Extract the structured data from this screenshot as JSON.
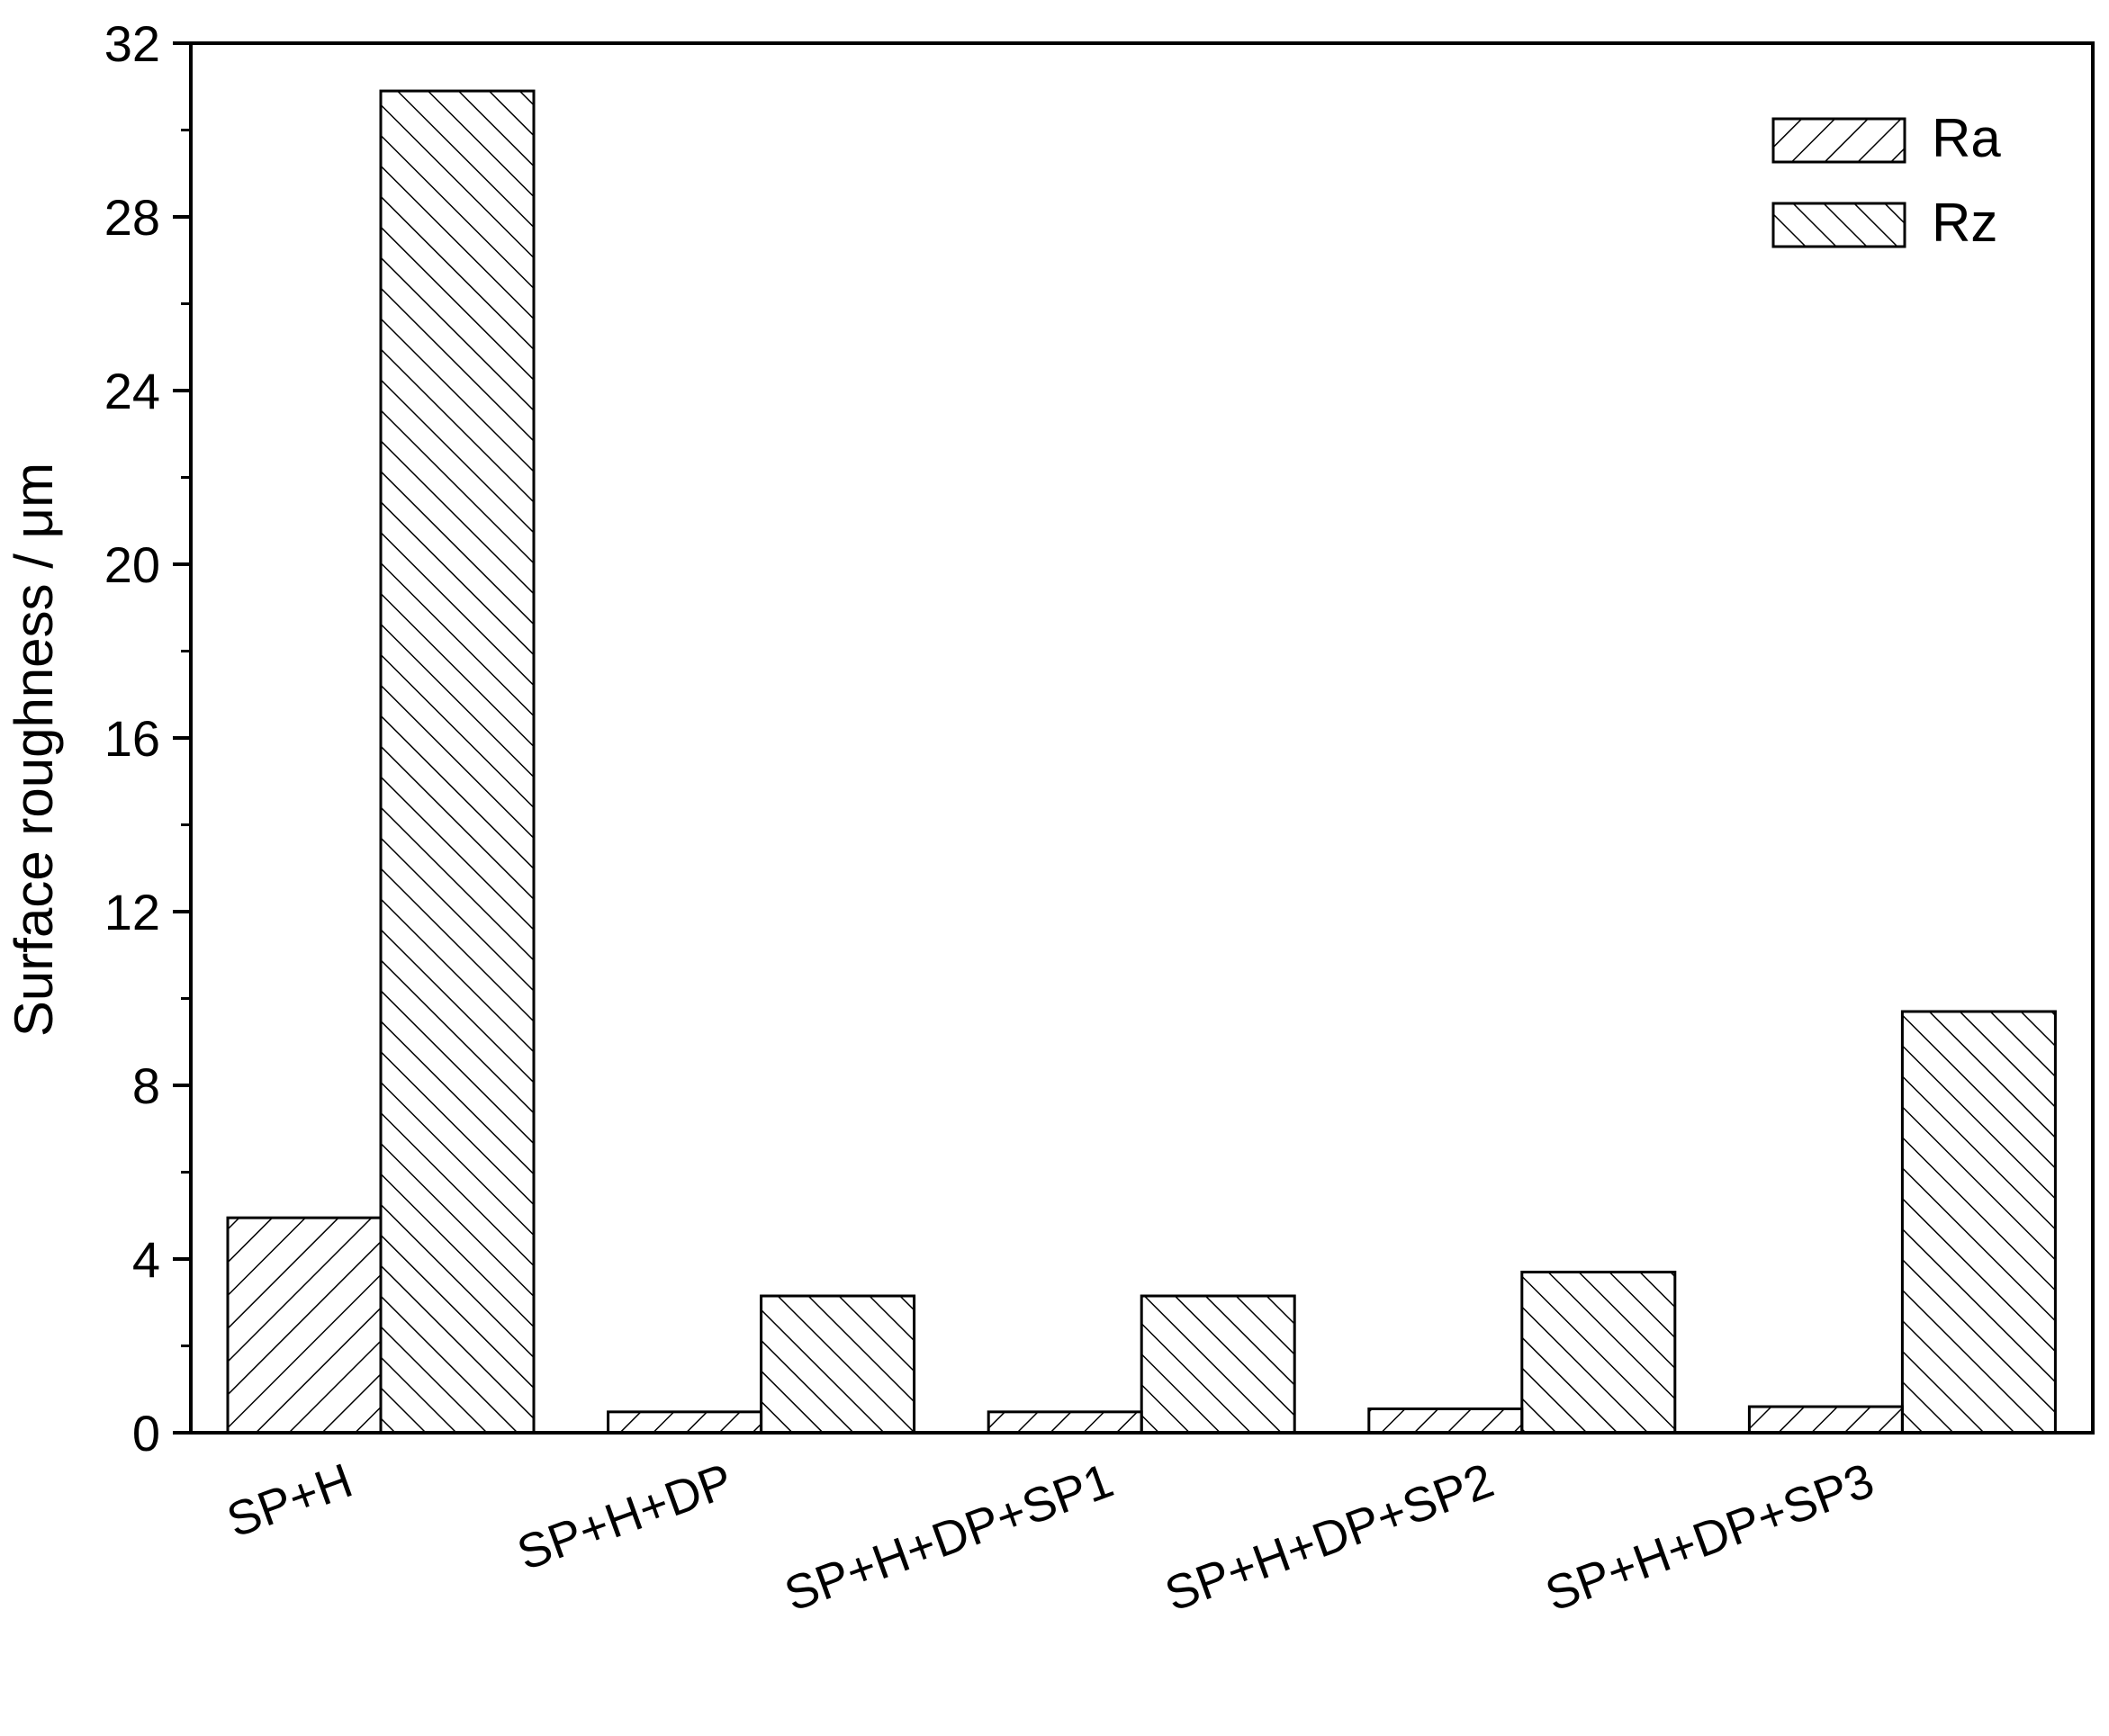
{
  "chart_data": {
    "type": "bar",
    "title": "",
    "xlabel": "",
    "ylabel": "Surface roughness / μm",
    "ylim": [
      0,
      32
    ],
    "yticks": [
      "0",
      "4",
      "8",
      "12",
      "16",
      "20",
      "24",
      "28",
      "32"
    ],
    "y_minor_ticks": true,
    "grid": false,
    "legend_position": "top-right",
    "categories": [
      "SP+H",
      "SP+H+DP",
      "SP+H+DP+SP1",
      "SP+H+DP+SP2",
      "SP+H+DP+SP3"
    ],
    "series": [
      {
        "name": "Ra",
        "values": [
          4.95,
          0.48,
          0.48,
          0.55,
          0.6
        ],
        "pattern": "hatch-forward",
        "color": "#000000"
      },
      {
        "name": "Rz",
        "values": [
          30.9,
          3.15,
          3.15,
          3.7,
          9.7
        ],
        "pattern": "hatch-back",
        "color": "#000000"
      }
    ]
  }
}
